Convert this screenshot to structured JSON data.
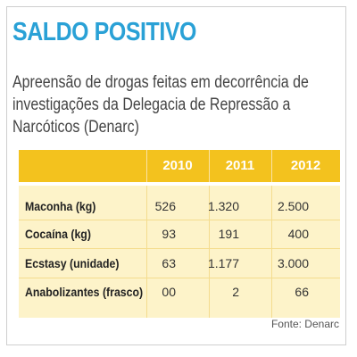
{
  "header": {
    "title": "SALDO POSITIVO",
    "subtitle": "Apreensão de drogas feitas em decorrência de investigações da Delegacia de Repressão a Narcóticos (Denarc)"
  },
  "colors": {
    "title": "#2aa1d6",
    "header_bg": "#f3c21e",
    "body_bg": "#fdf3c9"
  },
  "chart_data": {
    "type": "table",
    "title": "SALDO POSITIVO",
    "subtitle": "Apreensão de drogas feitas em decorrência de investigações da Delegacia de Repressão a Narcóticos (Denarc)",
    "columns": [
      "2010",
      "2011",
      "2012"
    ],
    "rows": [
      {
        "label": "Maconha (kg)",
        "values": [
          "526",
          "1.320",
          "2.500"
        ]
      },
      {
        "label": "Cocaína (kg)",
        "values": [
          "93",
          "191",
          "400"
        ]
      },
      {
        "label": "Ecstasy (unidade)",
        "values": [
          "63",
          "1.177",
          "3.000"
        ]
      },
      {
        "label": "Anabolizantes (frasco)",
        "values": [
          "00",
          "2",
          "66"
        ]
      }
    ],
    "source": "Fonte: Denarc"
  }
}
